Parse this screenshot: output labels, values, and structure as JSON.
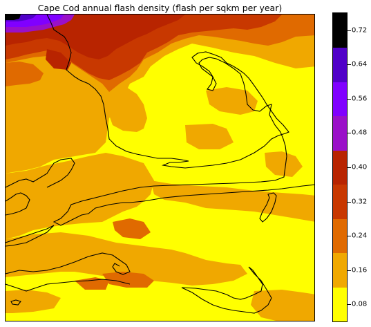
{
  "title": "Cape Cod annual flash density (flash per sqkm per year)",
  "colorbar": {
    "levels": [
      {
        "label": "0.08",
        "color": "#ffff00"
      },
      {
        "label": "0.16",
        "color": "#f0a800"
      },
      {
        "label": "0.24",
        "color": "#e06a00"
      },
      {
        "label": "0.32",
        "color": "#c83800"
      },
      {
        "label": "0.40",
        "color": "#b82400"
      },
      {
        "label": "0.48",
        "color": "#9a10c8"
      },
      {
        "label": "0.56",
        "color": "#8000ff"
      },
      {
        "label": "0.64",
        "color": "#5000c8"
      },
      {
        "label": "0.72",
        "color": "#000000"
      }
    ]
  }
}
